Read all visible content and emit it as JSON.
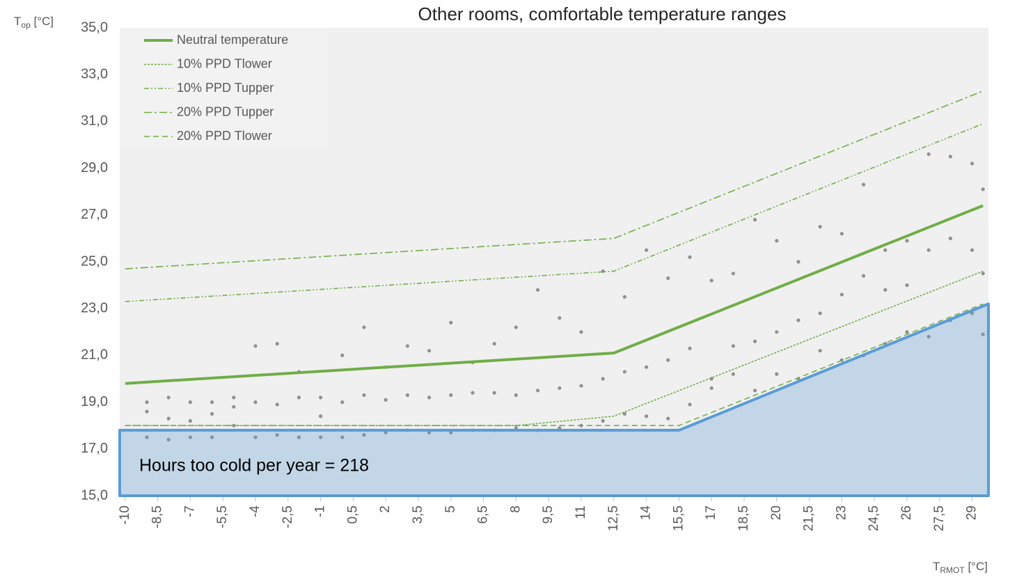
{
  "chart_data": {
    "type": "scatter",
    "title": "Other rooms, comfortable temperature ranges",
    "y_label": [
      "T",
      "op",
      " [°C]"
    ],
    "x_label": [
      "T",
      "RMOT",
      " [°C]"
    ],
    "annotation": "Hours too cold per year = 218",
    "xlim": [
      -10.25,
      29.75
    ],
    "ylim": [
      15,
      35
    ],
    "xticks": [
      -10,
      {
        "value": -8.5,
        "label": "-8,5"
      },
      -7,
      {
        "value": -5.5,
        "label": "-5,5"
      },
      -4,
      {
        "value": -2.5,
        "label": "-2,5"
      },
      -1,
      {
        "value": 0.5,
        "label": "0,5"
      },
      2,
      {
        "value": 3.5,
        "label": "3,5"
      },
      5,
      {
        "value": 6.5,
        "label": "6,5"
      },
      8,
      {
        "value": 9.5,
        "label": "9,5"
      },
      11,
      {
        "value": 12.5,
        "label": "12,5"
      },
      14,
      {
        "value": 15.5,
        "label": "15,5"
      },
      17,
      {
        "value": 18.5,
        "label": "18,5"
      },
      20,
      {
        "value": 21.5,
        "label": "21,5"
      },
      23,
      {
        "value": 24.5,
        "label": "24,5"
      },
      26,
      {
        "value": 27.5,
        "label": "27,5"
      },
      29
    ],
    "yticks": [
      {
        "value": 15,
        "label": "15,0"
      },
      {
        "value": 17,
        "label": "17,0"
      },
      {
        "value": 19,
        "label": "19,0"
      },
      {
        "value": 21,
        "label": "21,0"
      },
      {
        "value": 23,
        "label": "23,0"
      },
      {
        "value": 25,
        "label": "25,0"
      },
      {
        "value": 27,
        "label": "27,0"
      },
      {
        "value": 29,
        "label": "29,0"
      },
      {
        "value": 31,
        "label": "31,0"
      },
      {
        "value": 33,
        "label": "33,0"
      },
      {
        "value": 35,
        "label": "35,0"
      }
    ],
    "points": {
      "color": "#7f7f7f",
      "x": [
        -9,
        -9,
        -9,
        -8,
        -8,
        -8,
        -7,
        -7,
        -7,
        -6,
        -6,
        -6,
        -5,
        -5,
        -5,
        -4,
        -4,
        -4,
        -3,
        -3,
        -3,
        -2,
        -2,
        -2,
        -1,
        -1,
        -1,
        0,
        0,
        0,
        1,
        1,
        1,
        2,
        2,
        2,
        3,
        3,
        3,
        4,
        4,
        4,
        5,
        5,
        5,
        6,
        6,
        6,
        7,
        7,
        7,
        8,
        8,
        8,
        9,
        9,
        9,
        10,
        10,
        10,
        11,
        11,
        11,
        12,
        12,
        12,
        13,
        13,
        13,
        14,
        14,
        14,
        15,
        15,
        15,
        16,
        16,
        16,
        17,
        17,
        17,
        18,
        18,
        18,
        19,
        19,
        19,
        20,
        20,
        20,
        21,
        21,
        21,
        22,
        22,
        22,
        23,
        23,
        23,
        24,
        24,
        24,
        25,
        25,
        25,
        26,
        26,
        26,
        27,
        27,
        27,
        28,
        28,
        28,
        29,
        29,
        29,
        29.5,
        29.5,
        29.5
      ],
      "values": [
        17.5,
        18.6,
        19.0,
        17.4,
        18.3,
        19.2,
        17.5,
        18.2,
        19.0,
        17.5,
        18.5,
        19.0,
        18.0,
        18.8,
        19.2,
        17.5,
        19.0,
        21.4,
        17.6,
        18.9,
        21.5,
        17.5,
        19.2,
        20.3,
        17.5,
        18.4,
        19.2,
        17.5,
        19.0,
        21.0,
        17.6,
        19.3,
        22.2,
        17.7,
        19.1,
        20.5,
        17.8,
        19.3,
        21.4,
        17.7,
        19.2,
        21.2,
        17.7,
        19.3,
        22.4,
        17.8,
        19.4,
        20.7,
        17.8,
        19.4,
        21.5,
        17.9,
        19.3,
        22.2,
        17.8,
        19.5,
        23.8,
        17.9,
        19.6,
        22.6,
        18.0,
        19.7,
        22.0,
        18.2,
        20.0,
        24.6,
        18.5,
        20.3,
        23.5,
        18.4,
        20.5,
        25.5,
        18.3,
        20.8,
        24.3,
        18.9,
        21.3,
        25.2,
        19.6,
        20.0,
        24.2,
        20.2,
        21.4,
        24.5,
        19.5,
        21.6,
        26.8,
        20.2,
        22.0,
        25.9,
        20.0,
        22.5,
        25.0,
        21.2,
        22.8,
        26.5,
        20.8,
        23.6,
        26.2,
        21.0,
        24.4,
        28.3,
        21.5,
        23.8,
        25.5,
        22.0,
        24.0,
        25.9,
        21.8,
        25.5,
        29.6,
        22.5,
        26.0,
        29.5,
        22.8,
        25.5,
        29.2,
        21.9,
        24.5,
        28.1
      ]
    },
    "series": [
      {
        "name": "Neutral temperature",
        "color": "#70ad47",
        "style": "solid",
        "x": [
          -10,
          12.5,
          29.5
        ],
        "values": [
          19.8,
          21.1,
          27.4
        ]
      },
      {
        "name": "10% PPD Tlower",
        "color": "#70ad47",
        "style": "dotted",
        "x": [
          -10,
          8,
          12.5,
          29.5
        ],
        "values": [
          18.0,
          18.0,
          18.4,
          24.6
        ]
      },
      {
        "name": "10% PPD Tupper",
        "color": "#70ad47",
        "style": "dash-dot-dot",
        "x": [
          -10,
          12.5,
          29.5
        ],
        "values": [
          23.3,
          24.6,
          30.9
        ]
      },
      {
        "name": "20% PPD Tupper",
        "color": "#70ad47",
        "style": "dash-dot",
        "x": [
          -10,
          12.5,
          29.5
        ],
        "values": [
          24.7,
          26.0,
          32.3
        ]
      },
      {
        "name": "20% PPD Tlower",
        "color": "#70ad47",
        "style": "dashed",
        "x": [
          -10,
          15.5,
          29.5
        ],
        "values": [
          18.0,
          18.0,
          23.2
        ]
      }
    ],
    "cold_zone": {
      "color": "#5b9bd5",
      "x": [
        -10.25,
        15.5,
        29.75
      ],
      "values": [
        17.8,
        17.8,
        23.2
      ]
    }
  }
}
